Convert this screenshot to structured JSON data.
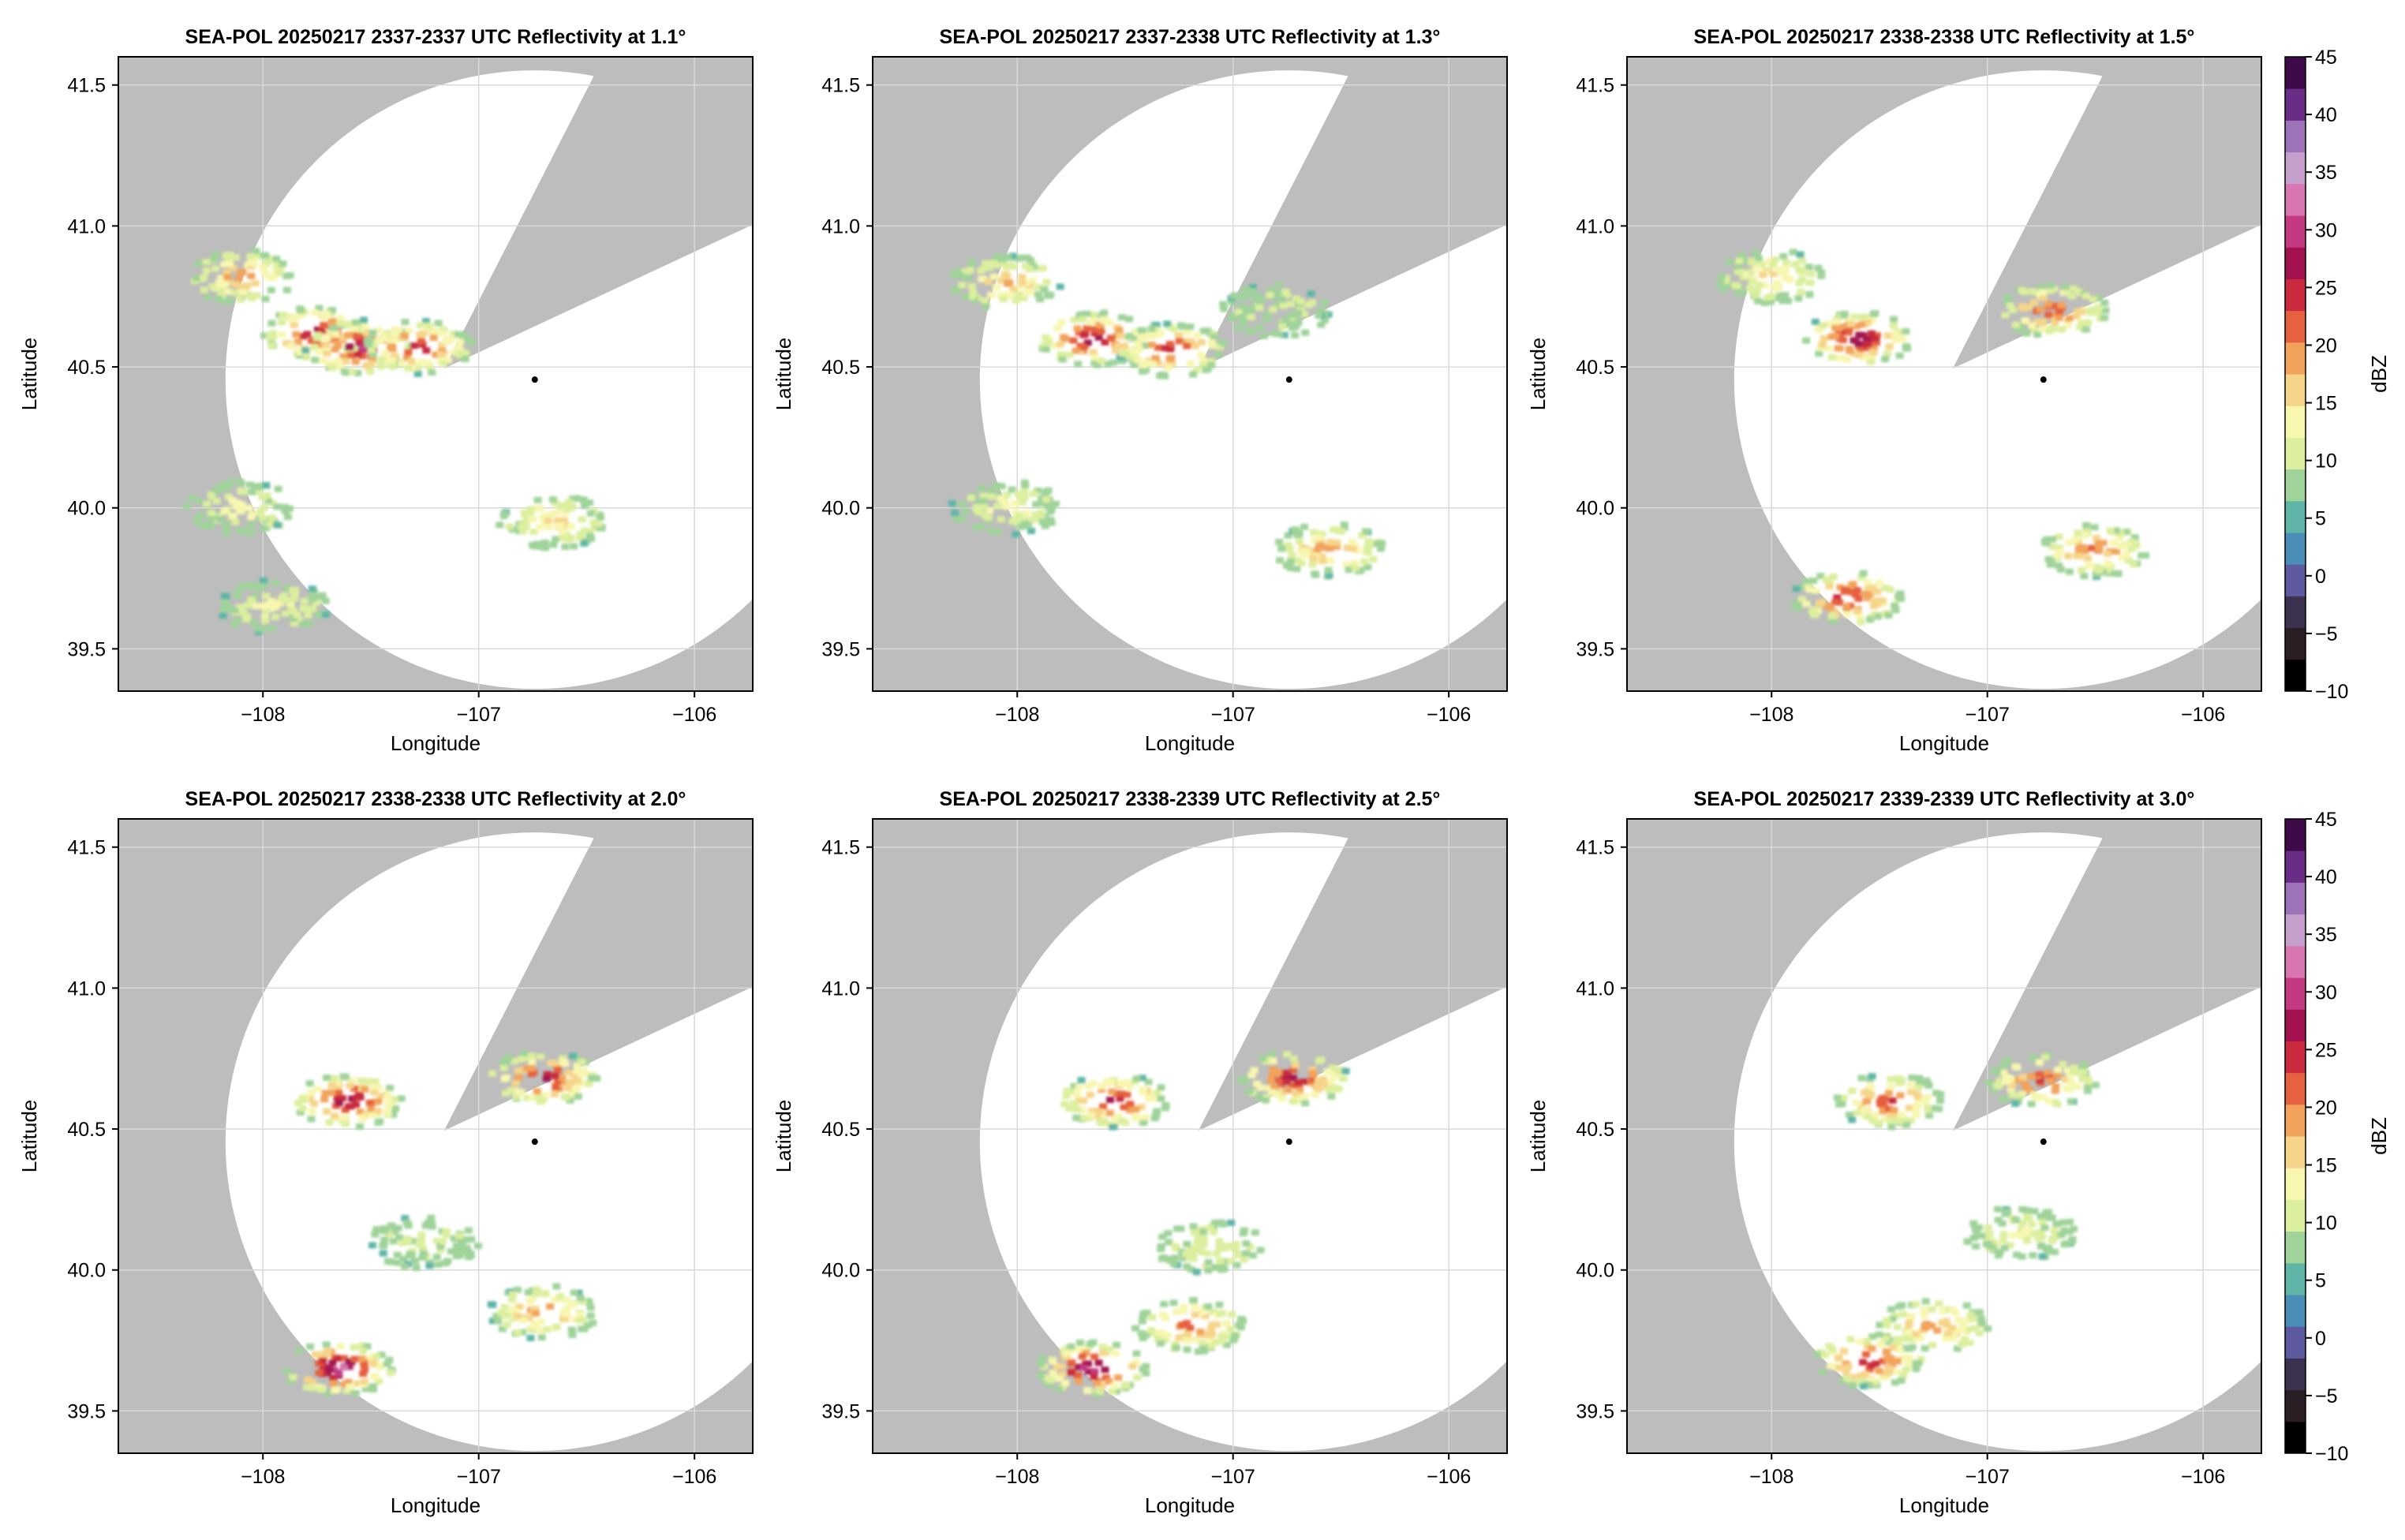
{
  "figure": {
    "xlabel": "Longitude",
    "ylabel": "Latitude",
    "colorbar_label": "dBZ",
    "colors": {
      "no_coverage": "#bdbdbd",
      "scan_area": "#ffffff",
      "grid": "#d9d9d9",
      "radar_site": "#000000"
    },
    "colormap": [
      "#000000",
      "#2a1d24",
      "#3c3250",
      "#5d5aa0",
      "#4b8fb8",
      "#5fb6a7",
      "#9fd39a",
      "#dcef9e",
      "#f7f7b0",
      "#f6d58a",
      "#f2a35b",
      "#e6613f",
      "#c92a3e",
      "#a3124f",
      "#c43a82",
      "#d776b0",
      "#c5a0cc",
      "#9e72b8",
      "#6a2d86",
      "#3f0a4a"
    ],
    "colorbar_ticks": [
      "45",
      "40",
      "35",
      "30",
      "25",
      "20",
      "15",
      "10",
      "5",
      "0",
      "-5",
      "-10"
    ],
    "x_ticks": [
      "−108",
      "−107",
      "−106"
    ],
    "y_ticks": [
      "41.5",
      "41.0",
      "40.5",
      "40.0",
      "39.5"
    ]
  },
  "chart_data": [
    {
      "type": "heatmap",
      "title": "SEA-POL 20250217 2337-2337 UTC Reflectivity at 1.1°",
      "xlabel": "Longitude",
      "ylabel": "Latitude",
      "xlim": [
        -108.67,
        -105.73
      ],
      "ylim": [
        39.35,
        41.6
      ],
      "radar_site": {
        "lon": -106.74,
        "lat": 40.455
      },
      "echoes": [
        {
          "lon": -108.1,
          "lat": 40.82,
          "max_dbz": 22
        },
        {
          "lon": -107.75,
          "lat": 40.62,
          "max_dbz": 30
        },
        {
          "lon": -107.55,
          "lat": 40.57,
          "max_dbz": 33
        },
        {
          "lon": -107.28,
          "lat": 40.57,
          "max_dbz": 28
        },
        {
          "lon": -106.65,
          "lat": 39.95,
          "max_dbz": 18
        },
        {
          "lon": -108.1,
          "lat": 40.0,
          "max_dbz": 15
        },
        {
          "lon": -107.95,
          "lat": 39.65,
          "max_dbz": 15
        }
      ]
    },
    {
      "type": "heatmap",
      "title": "SEA-POL 20250217 2337-2338 UTC Reflectivity at 1.3°",
      "xlabel": "Longitude",
      "ylabel": "Latitude",
      "xlim": [
        -108.67,
        -105.73
      ],
      "ylim": [
        39.35,
        41.6
      ],
      "radar_site": {
        "lon": -106.74,
        "lat": 40.455
      },
      "echoes": [
        {
          "lon": -108.05,
          "lat": 40.8,
          "max_dbz": 20
        },
        {
          "lon": -107.65,
          "lat": 40.6,
          "max_dbz": 32
        },
        {
          "lon": -107.28,
          "lat": 40.56,
          "max_dbz": 28
        },
        {
          "lon": -106.55,
          "lat": 39.85,
          "max_dbz": 22
        },
        {
          "lon": -106.8,
          "lat": 40.7,
          "max_dbz": 12
        },
        {
          "lon": -108.05,
          "lat": 40.0,
          "max_dbz": 15
        }
      ]
    },
    {
      "type": "heatmap",
      "title": "SEA-POL 20250217 2338-2338 UTC Reflectivity at 1.5°",
      "xlabel": "Longitude",
      "ylabel": "Latitude",
      "xlim": [
        -108.67,
        -105.73
      ],
      "ylim": [
        39.35,
        41.6
      ],
      "radar_site": {
        "lon": -106.74,
        "lat": 40.455
      },
      "echoes": [
        {
          "lon": -108.0,
          "lat": 40.82,
          "max_dbz": 18
        },
        {
          "lon": -107.6,
          "lat": 40.6,
          "max_dbz": 32
        },
        {
          "lon": -106.7,
          "lat": 40.7,
          "max_dbz": 26
        },
        {
          "lon": -106.5,
          "lat": 39.85,
          "max_dbz": 24
        },
        {
          "lon": -107.65,
          "lat": 39.68,
          "max_dbz": 29
        }
      ]
    },
    {
      "type": "heatmap",
      "title": "SEA-POL 20250217 2338-2338 UTC Reflectivity at 2.0°",
      "xlabel": "Longitude",
      "ylabel": "Latitude",
      "xlim": [
        -108.67,
        -105.73
      ],
      "ylim": [
        39.35,
        41.6
      ],
      "radar_site": {
        "lon": -106.74,
        "lat": 40.455
      },
      "echoes": [
        {
          "lon": -107.6,
          "lat": 40.6,
          "max_dbz": 32
        },
        {
          "lon": -106.7,
          "lat": 40.68,
          "max_dbz": 30
        },
        {
          "lon": -107.25,
          "lat": 40.1,
          "max_dbz": 12
        },
        {
          "lon": -106.7,
          "lat": 39.85,
          "max_dbz": 22
        },
        {
          "lon": -107.65,
          "lat": 39.65,
          "max_dbz": 36
        }
      ]
    },
    {
      "type": "heatmap",
      "title": "SEA-POL 20250217 2338-2339 UTC Reflectivity at 2.5°",
      "xlabel": "Longitude",
      "ylabel": "Latitude",
      "xlim": [
        -108.67,
        -105.73
      ],
      "ylim": [
        39.35,
        41.6
      ],
      "radar_site": {
        "lon": -106.74,
        "lat": 40.455
      },
      "echoes": [
        {
          "lon": -107.55,
          "lat": 40.6,
          "max_dbz": 30
        },
        {
          "lon": -106.72,
          "lat": 40.68,
          "max_dbz": 30
        },
        {
          "lon": -107.1,
          "lat": 40.08,
          "max_dbz": 14
        },
        {
          "lon": -107.2,
          "lat": 39.8,
          "max_dbz": 24
        },
        {
          "lon": -107.65,
          "lat": 39.65,
          "max_dbz": 35
        }
      ]
    },
    {
      "type": "heatmap",
      "title": "SEA-POL 20250217 2339-2339 UTC Reflectivity at 3.0°",
      "xlabel": "Longitude",
      "ylabel": "Latitude",
      "xlim": [
        -108.67,
        -105.73
      ],
      "ylim": [
        39.35,
        41.6
      ],
      "radar_site": {
        "lon": -106.74,
        "lat": 40.455
      },
      "echoes": [
        {
          "lon": -107.45,
          "lat": 40.6,
          "max_dbz": 26
        },
        {
          "lon": -106.75,
          "lat": 40.67,
          "max_dbz": 26
        },
        {
          "lon": -106.85,
          "lat": 40.13,
          "max_dbz": 14
        },
        {
          "lon": -107.25,
          "lat": 39.8,
          "max_dbz": 22
        },
        {
          "lon": -107.55,
          "lat": 39.68,
          "max_dbz": 30
        }
      ]
    }
  ]
}
